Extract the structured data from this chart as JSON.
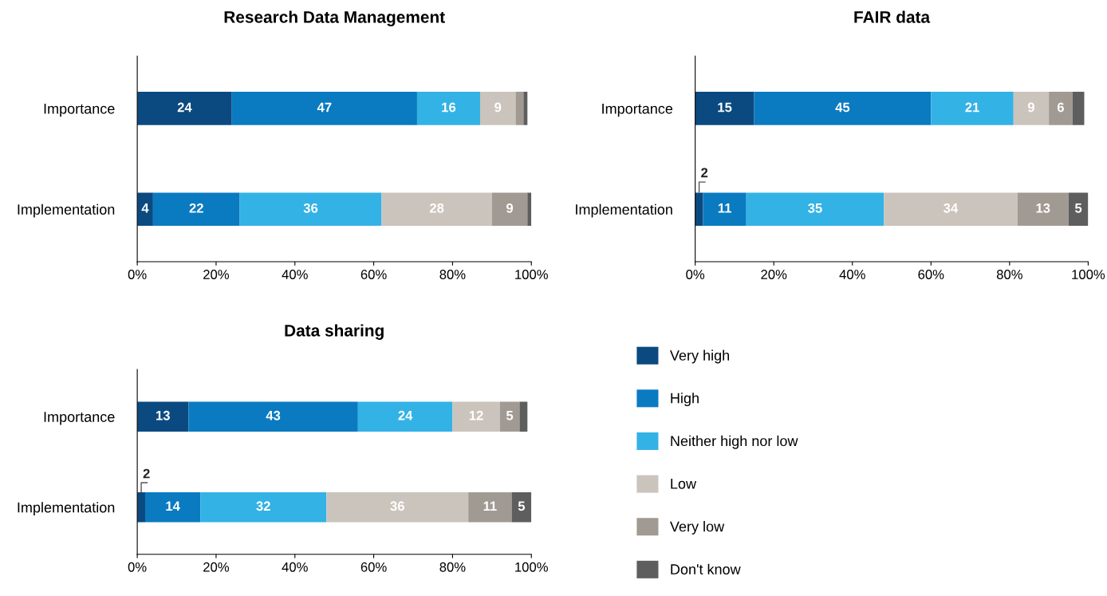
{
  "chart_data": [
    {
      "type": "bar",
      "orientation": "horizontal",
      "stacked": true,
      "title": "Research Data Management",
      "categories": [
        "Importance",
        "Implementation"
      ],
      "xlim": [
        0,
        100
      ],
      "xticks": [
        {
          "value": 0,
          "label": "0%"
        },
        {
          "value": 20,
          "label": "20%"
        },
        {
          "value": 40,
          "label": "40%"
        },
        {
          "value": 60,
          "label": "60%"
        },
        {
          "value": 80,
          "label": "80%"
        },
        {
          "value": 100,
          "label": "100%"
        }
      ],
      "grid": false,
      "legend": "right",
      "series": [
        {
          "name": "Very high",
          "color": "#0b4a80",
          "values": [
            24,
            4
          ],
          "value_labels": [
            "24",
            "4"
          ]
        },
        {
          "name": "High",
          "color": "#0a7bc1",
          "values": [
            47,
            22
          ],
          "value_labels": [
            "47",
            "22"
          ]
        },
        {
          "name": "Neither high nor low",
          "color": "#33b2e5",
          "values": [
            16,
            36
          ],
          "value_labels": [
            "16",
            "36"
          ]
        },
        {
          "name": "Low",
          "color": "#cbc4bc",
          "values": [
            9,
            28
          ],
          "value_labels": [
            "9",
            "28"
          ]
        },
        {
          "name": "Very low",
          "color": "#a19a93",
          "values": [
            2,
            9
          ],
          "value_labels": [
            null,
            "9"
          ]
        },
        {
          "name": "Don't know",
          "color": "#5f5e5f",
          "values": [
            1,
            1
          ],
          "value_labels": [
            null,
            null
          ]
        }
      ]
    },
    {
      "type": "bar",
      "orientation": "horizontal",
      "stacked": true,
      "title": "FAIR data",
      "categories": [
        "Importance",
        "Implementation"
      ],
      "xlim": [
        0,
        100
      ],
      "xticks": [
        {
          "value": 0,
          "label": "0%"
        },
        {
          "value": 20,
          "label": "20%"
        },
        {
          "value": 40,
          "label": "40%"
        },
        {
          "value": 60,
          "label": "60%"
        },
        {
          "value": 80,
          "label": "80%"
        },
        {
          "value": 100,
          "label": "100%"
        }
      ],
      "grid": false,
      "series": [
        {
          "color": "#0b4a80",
          "values": [
            15,
            2
          ],
          "value_labels": [
            "15",
            "2"
          ]
        },
        {
          "color": "#0a7bc1",
          "values": [
            45,
            11
          ],
          "value_labels": [
            "45",
            "11"
          ]
        },
        {
          "color": "#33b2e5",
          "values": [
            21,
            35
          ],
          "value_labels": [
            "21",
            "35"
          ]
        },
        {
          "color": "#cbc4bc",
          "values": [
            9,
            34
          ],
          "value_labels": [
            "9",
            "34"
          ]
        },
        {
          "color": "#a19a93",
          "values": [
            6,
            13
          ],
          "value_labels": [
            "6",
            "13"
          ]
        },
        {
          "color": "#5f5e5f",
          "values": [
            3,
            5
          ],
          "value_labels": [
            null,
            "5"
          ]
        }
      ]
    },
    {
      "type": "bar",
      "orientation": "horizontal",
      "stacked": true,
      "title": "Data sharing",
      "categories": [
        "Importance",
        "Implementation"
      ],
      "xlim": [
        0,
        100
      ],
      "xticks": [
        {
          "value": 0,
          "label": "0%"
        },
        {
          "value": 20,
          "label": "20%"
        },
        {
          "value": 40,
          "label": "40%"
        },
        {
          "value": 60,
          "label": "60%"
        },
        {
          "value": 80,
          "label": "80%"
        },
        {
          "value": 100,
          "label": "100%"
        }
      ],
      "grid": false,
      "series": [
        {
          "color": "#0b4a80",
          "values": [
            13,
            2
          ],
          "value_labels": [
            "13",
            "2"
          ]
        },
        {
          "color": "#0a7bc1",
          "values": [
            43,
            14
          ],
          "value_labels": [
            "43",
            "14"
          ]
        },
        {
          "color": "#33b2e5",
          "values": [
            24,
            32
          ],
          "value_labels": [
            "24",
            "32"
          ]
        },
        {
          "color": "#cbc4bc",
          "values": [
            12,
            36
          ],
          "value_labels": [
            "12",
            "36"
          ]
        },
        {
          "color": "#a19a93",
          "values": [
            5,
            11
          ],
          "value_labels": [
            "5",
            "11"
          ]
        },
        {
          "color": "#5f5e5f",
          "values": [
            2,
            5
          ],
          "value_labels": [
            null,
            "5"
          ]
        }
      ]
    }
  ]
}
